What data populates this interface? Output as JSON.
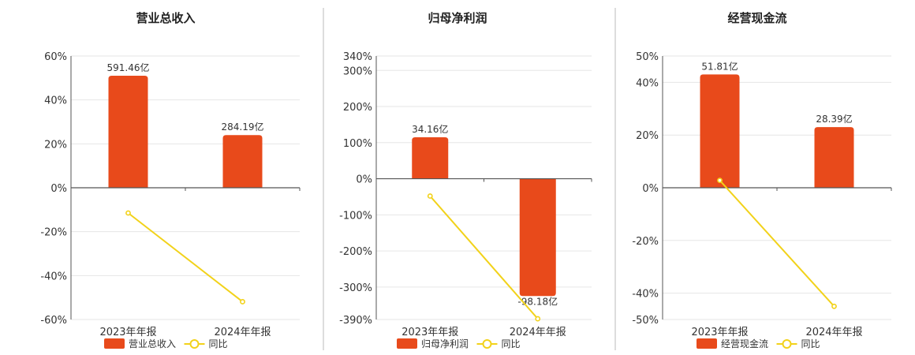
{
  "colors": {
    "bar": "#E84A1B",
    "line": "#F2D21A",
    "grid": "#E6E6E6",
    "axis": "#555555",
    "divider": "#BBBBBB"
  },
  "chart_data": [
    {
      "type": "bar",
      "title": "营业总收入",
      "categories": [
        "2023年年报",
        "2024年年报"
      ],
      "ylim": [
        -60,
        60
      ],
      "yticks": [
        "60%",
        "40%",
        "20%",
        "0%",
        "-20%",
        "-40%",
        "-60%"
      ],
      "ytick_values": [
        60,
        40,
        20,
        0,
        -20,
        -40,
        -60
      ],
      "series": [
        {
          "name": "营业总收入",
          "kind": "bar",
          "values": [
            51,
            24
          ],
          "labels": [
            "591.46亿",
            "284.19亿"
          ]
        },
        {
          "name": "同比",
          "kind": "line",
          "values": [
            -11.5,
            -51.9
          ]
        }
      ],
      "legend": "bottom-center"
    },
    {
      "type": "bar",
      "title": "归母净利润",
      "categories": [
        "2023年年报",
        "2024年年报"
      ],
      "ylim": [
        -390,
        340
      ],
      "yticks": [
        "340%",
        "300%",
        "200%",
        "100%",
        "0%",
        "-100%",
        "-200%",
        "-300%",
        "-390%"
      ],
      "ytick_values": [
        340,
        300,
        200,
        100,
        0,
        -100,
        -200,
        -300,
        -390
      ],
      "series": [
        {
          "name": "归母净利润",
          "kind": "bar",
          "values": [
            115,
            -325
          ],
          "labels": [
            "34.16亿",
            "-98.18亿"
          ]
        },
        {
          "name": "同比",
          "kind": "line",
          "values": [
            -48,
            -388
          ]
        }
      ],
      "legend": "bottom-center"
    },
    {
      "type": "bar",
      "title": "经营现金流",
      "categories": [
        "2023年年报",
        "2024年年报"
      ],
      "ylim": [
        -50,
        50
      ],
      "yticks": [
        "50%",
        "40%",
        "20%",
        "0%",
        "-20%",
        "-40%",
        "-50%"
      ],
      "ytick_values": [
        50,
        40,
        20,
        0,
        -20,
        -40,
        -50
      ],
      "series": [
        {
          "name": "经营现金流",
          "kind": "bar",
          "values": [
            43,
            23
          ],
          "labels": [
            "51.81亿",
            "28.39亿"
          ]
        },
        {
          "name": "同比",
          "kind": "line",
          "values": [
            2.8,
            -45
          ]
        }
      ],
      "legend": "bottom-center"
    }
  ]
}
